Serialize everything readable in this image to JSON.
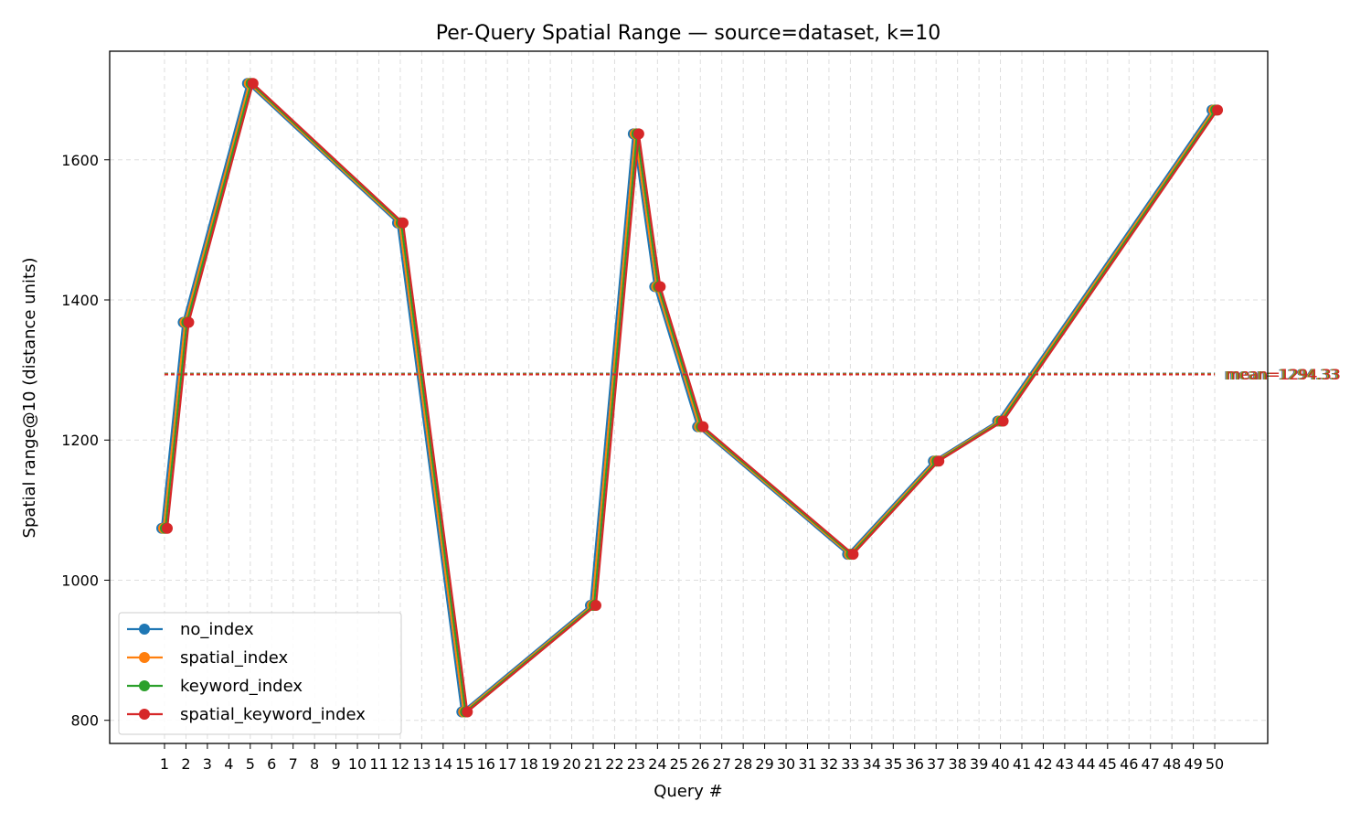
{
  "chart_data": {
    "type": "line",
    "title": "Per-Query Spatial Range — source=dataset, k=10",
    "xlabel": "Query #",
    "ylabel": "Spatial range@10 (distance units)",
    "x_ticks": [
      "1",
      "2",
      "3",
      "4",
      "5",
      "6",
      "7",
      "8",
      "9",
      "10",
      "11",
      "12",
      "13",
      "14",
      "15",
      "16",
      "17",
      "18",
      "19",
      "20",
      "21",
      "22",
      "23",
      "24",
      "25",
      "26",
      "27",
      "28",
      "29",
      "30",
      "31",
      "32",
      "33",
      "34",
      "35",
      "36",
      "37",
      "38",
      "39",
      "40",
      "41",
      "42",
      "43",
      "44",
      "45",
      "46",
      "47",
      "48",
      "49",
      "50"
    ],
    "y_ticks": [
      800,
      1000,
      1200,
      1400,
      1600
    ],
    "ylim": [
      767,
      1755
    ],
    "grid": true,
    "legend_position": "lower-left",
    "x": [
      1,
      2,
      5,
      12,
      15,
      21,
      23,
      24,
      26,
      33,
      37,
      40,
      50
    ],
    "series": [
      {
        "name": "no_index",
        "color": "#1f77b4",
        "values": [
          1074,
          1368,
          1709,
          1510,
          812,
          964,
          1637,
          1419,
          1219,
          1037,
          1170,
          1227,
          1671
        ],
        "mean": 1294.33,
        "mean_label": "mean=1294.33"
      },
      {
        "name": "spatial_index",
        "color": "#ff7f0e",
        "values": [
          1074,
          1368,
          1709,
          1510,
          812,
          964,
          1637,
          1419,
          1219,
          1037,
          1170,
          1227,
          1671
        ],
        "mean": 1294.33,
        "mean_label": "mean=1294.33"
      },
      {
        "name": "keyword_index",
        "color": "#2ca02c",
        "values": [
          1074,
          1368,
          1709,
          1510,
          812,
          964,
          1637,
          1419,
          1219,
          1037,
          1170,
          1227,
          1671
        ],
        "mean": 1294.33,
        "mean_label": "mean=1294.33"
      },
      {
        "name": "spatial_keyword_index",
        "color": "#d62728",
        "values": [
          1074,
          1368,
          1709,
          1510,
          812,
          964,
          1637,
          1419,
          1219,
          1037,
          1170,
          1227,
          1671
        ],
        "mean": 1294.33,
        "mean_label": "mean=1294.33"
      }
    ]
  }
}
